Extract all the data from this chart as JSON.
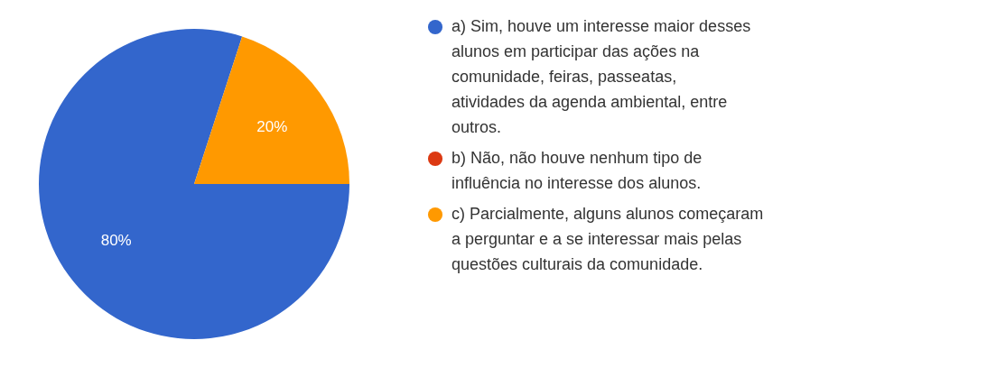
{
  "chart_data": {
    "type": "pie",
    "categories": [
      "a) Sim, houve um interesse maior desses alunos em participar das ações na comunidade, feiras, passeatas, atividades da agenda ambiental, entre outros.",
      "b) Não, não houve nenhum tipo de influência no interesse dos alunos.",
      "c) Parcialmente, alguns alunos começaram a perguntar e a se interessar mais pelas questões culturais da comunidade."
    ],
    "values": [
      80,
      0,
      20
    ],
    "colors": [
      "#3366cc",
      "#dc3912",
      "#ff9900"
    ],
    "value_labels": [
      "80%",
      null,
      "20%"
    ],
    "legend": "right"
  }
}
